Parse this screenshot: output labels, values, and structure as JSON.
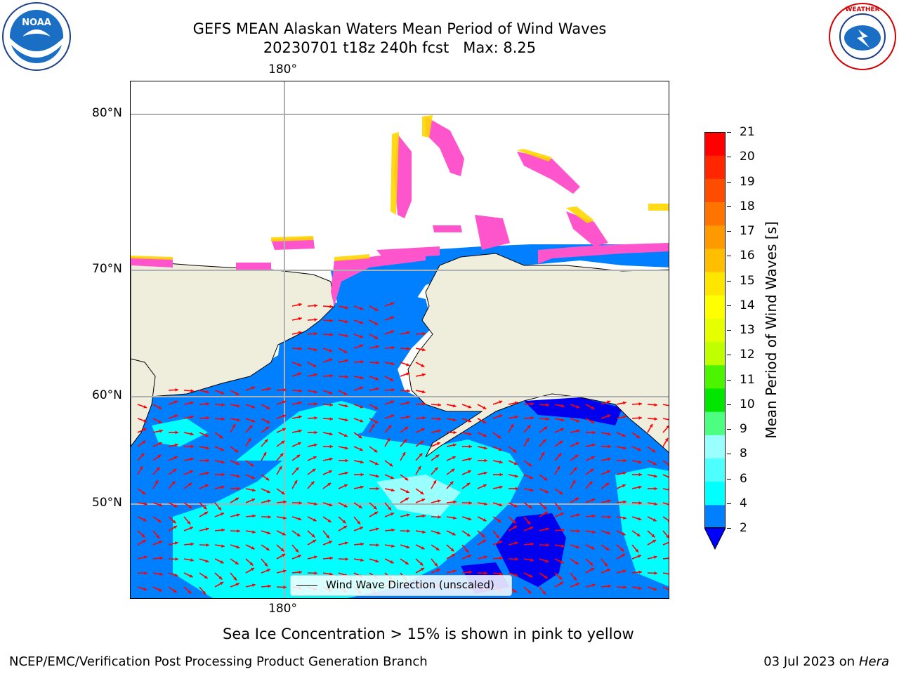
{
  "header": {
    "title_line1": "GEFS MEAN Alaskan Waters Mean Period of Wind Waves",
    "title_line2": "20230701 t18z 240h fcst   Max: 8.25"
  },
  "logos": {
    "left": "noaa-logo",
    "right": "national-weather-service-logo",
    "left_text": "NOAA",
    "right_ring_text": "NATIONAL WEATHER SERVICE"
  },
  "map": {
    "lon_top_label": "180°",
    "lon_bottom_label": "180°",
    "lat_labels": [
      "80°N",
      "70°N",
      "60°N",
      "50°N"
    ],
    "legend_text": "Wind Wave Direction (unscaled)",
    "colors": {
      "land": "#efeddc",
      "ocean_low": "#0080ff",
      "ocean_mid": "#00ffff",
      "ocean_deep": "#0000ee",
      "arrow": "#ff0000",
      "ice_pink": "#ff55cc",
      "ice_yellow": "#ffd700",
      "grid": "#b0b0b0"
    }
  },
  "colorbar": {
    "label": "Mean Period of Wind Waves [s]",
    "ticks": [
      "21",
      "20",
      "19",
      "18",
      "17",
      "16",
      "15",
      "14",
      "13",
      "12",
      "11",
      "10",
      "9",
      "8",
      "6",
      "4",
      "2"
    ],
    "colors": [
      "#0000ff",
      "#0080ff",
      "#00ffff",
      "#4dffff",
      "#99ffff",
      "#4dff80",
      "#00e600",
      "#4df400",
      "#bfff00",
      "#e6ff00",
      "#ffff00",
      "#ffe600",
      "#ffbf00",
      "#ff9900",
      "#ff7300",
      "#ff4d00",
      "#ff2600",
      "#ff0000"
    ]
  },
  "caption": "Sea Ice Concentration > 15% is shown in pink to yellow",
  "footer": {
    "left": "NCEP/EMC/Verification Post Processing Product Generation Branch",
    "right_date": "03 Jul 2023 on ",
    "right_host": "Hera"
  }
}
